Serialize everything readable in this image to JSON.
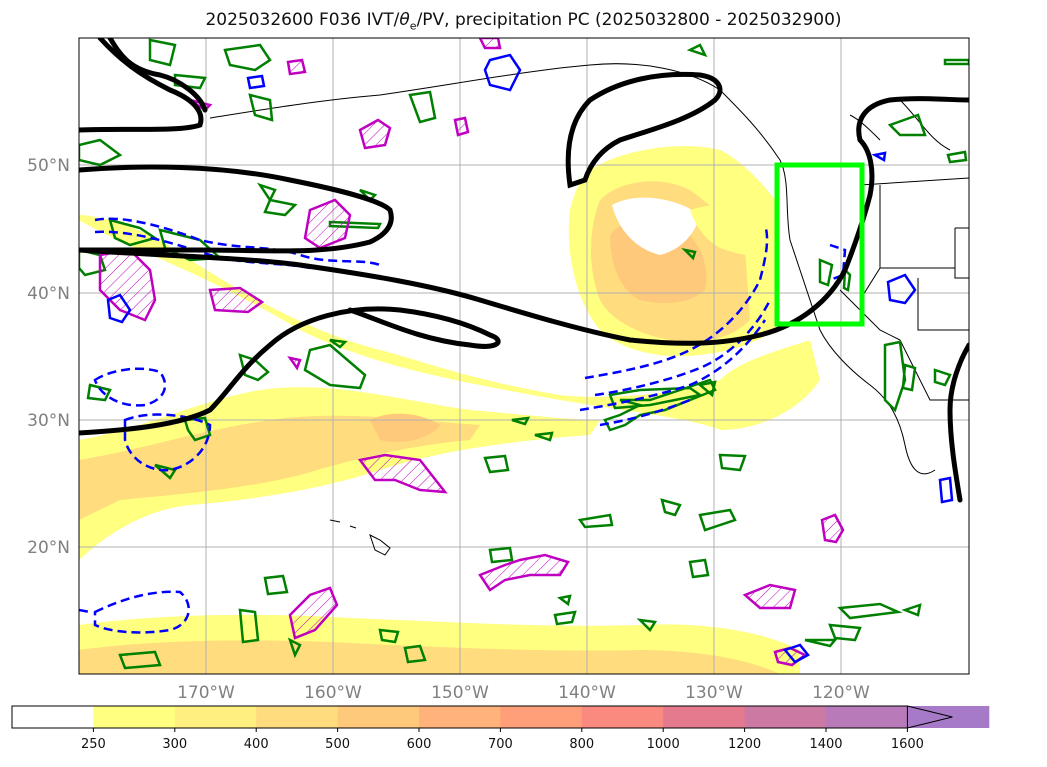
{
  "title": {
    "pre": "2025032600 F036 IVT/",
    "theta": "θ",
    "sub": "e",
    "post": "/PV, precipitation PC (2025032800 - 2025032900)"
  },
  "lat_labels": [
    "50°N",
    "40°N",
    "30°N",
    "20°N"
  ],
  "lon_labels": [
    "170°W",
    "160°W",
    "150°W",
    "140°W",
    "130°W",
    "120°W"
  ],
  "colorbar": {
    "ticks": [
      "250",
      "300",
      "400",
      "500",
      "600",
      "700",
      "800",
      "1000",
      "1200",
      "1400",
      "1600"
    ],
    "colors": [
      "#ffff80",
      "#ffef7e",
      "#ffdc7d",
      "#ffc97c",
      "#ffb27a",
      "#ff9f79",
      "#fa8a7f",
      "#e57a8e",
      "#cc7aa3",
      "#b87ab8",
      "#a77ac8"
    ]
  },
  "colors": {
    "highlight_box": "#00ff00",
    "ivt_contour": "#000000",
    "theta_e": "#0000ff",
    "pv_green": "#008000",
    "pv_magenta": "#c000c0"
  }
}
